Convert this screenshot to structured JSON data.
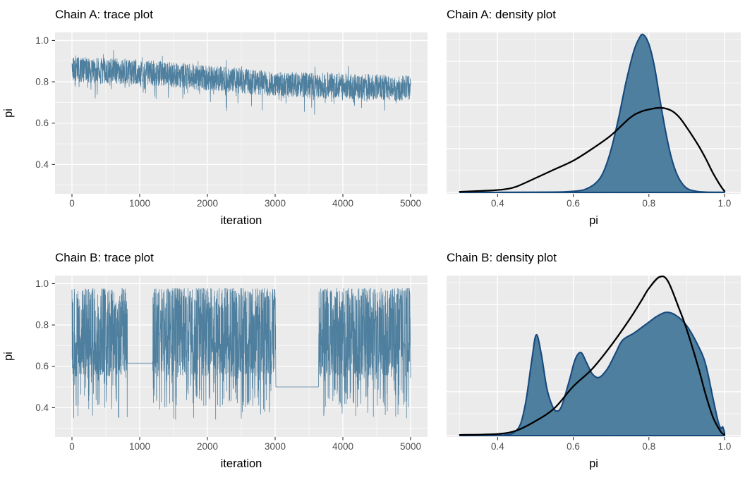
{
  "page": {
    "description": "Two-by-two grid of MCMC diagnostic plots comparing two chains (ggplot style)",
    "background": "#ffffff"
  },
  "colors": {
    "panel_bg": "#EBEBEB",
    "grid_line": "#FFFFFF",
    "trace_line": "#4E7F9E",
    "density_fill": "#4E7F9E",
    "density_stroke": "#17497D",
    "comparison_curve": "#000000",
    "tick_label": "#4D4D4D",
    "tick_mark": "#333333",
    "axis_title": "#000000",
    "plot_title": "#000000"
  },
  "chart_data": [
    {
      "id": "chain-a-trace",
      "type": "line",
      "title": "Chain A: trace plot",
      "xlabel": "iteration",
      "ylabel": "pi",
      "xlim": [
        -250,
        5250
      ],
      "ylim": [
        0.258,
        1.039
      ],
      "x_ticks": [
        0,
        1000,
        2000,
        3000,
        4000,
        5000
      ],
      "x_minor": [
        500,
        1500,
        2500,
        3500,
        4500
      ],
      "y_ticks": [
        0.4,
        0.6,
        0.8,
        1.0
      ],
      "y_minor": [
        0.3,
        0.5,
        0.7,
        0.9
      ],
      "grid": true,
      "series": {
        "name": "pi trace",
        "kind": "drifting_band",
        "n_iterations": 5000,
        "mean_start": 0.858,
        "mean_end": 0.76,
        "band_halfwidth": 0.062,
        "down_spike_prob": 0.05,
        "down_spike_max": 0.095,
        "up_spike_prob": 0.035,
        "up_spike_max": 0.045,
        "observed_min": 0.62,
        "observed_max": 0.965,
        "seed": 20
      }
    },
    {
      "id": "chain-a-density",
      "type": "area",
      "title": "Chain A: density plot",
      "xlabel": "pi",
      "xlim": [
        0.265,
        1.043
      ],
      "x_ticks": [
        0.4,
        0.6,
        0.8,
        1.0
      ],
      "x_minor": [
        0.3,
        0.5,
        0.7,
        0.9
      ],
      "y_major": [
        0,
        0.276,
        0.551,
        0.827
      ],
      "y_minor": [
        0.138,
        0.414,
        0.689,
        0.965
      ],
      "grid": true,
      "density": {
        "name": "chain A sample density",
        "peak_x": 0.785,
        "peak_height": 0.995,
        "points": [
          [
            0.3,
            0
          ],
          [
            0.45,
            0.001
          ],
          [
            0.55,
            0.002
          ],
          [
            0.6,
            0.007
          ],
          [
            0.63,
            0.018
          ],
          [
            0.66,
            0.06
          ],
          [
            0.68,
            0.13
          ],
          [
            0.7,
            0.27
          ],
          [
            0.72,
            0.47
          ],
          [
            0.74,
            0.7
          ],
          [
            0.76,
            0.89
          ],
          [
            0.775,
            0.975
          ],
          [
            0.785,
            0.995
          ],
          [
            0.8,
            0.935
          ],
          [
            0.815,
            0.79
          ],
          [
            0.83,
            0.575
          ],
          [
            0.845,
            0.375
          ],
          [
            0.86,
            0.215
          ],
          [
            0.875,
            0.11
          ],
          [
            0.89,
            0.05
          ],
          [
            0.905,
            0.02
          ],
          [
            0.925,
            0.007
          ],
          [
            0.95,
            0.002
          ],
          [
            1.0,
            0.001
          ]
        ]
      },
      "curve": {
        "name": "target density",
        "peak_x": 0.835,
        "peak_height": 0.533,
        "points": [
          [
            0.3,
            0.004
          ],
          [
            0.38,
            0.012
          ],
          [
            0.42,
            0.02
          ],
          [
            0.45,
            0.037
          ],
          [
            0.5,
            0.09
          ],
          [
            0.55,
            0.145
          ],
          [
            0.6,
            0.2
          ],
          [
            0.65,
            0.275
          ],
          [
            0.7,
            0.36
          ],
          [
            0.75,
            0.47
          ],
          [
            0.78,
            0.51
          ],
          [
            0.81,
            0.528
          ],
          [
            0.835,
            0.533
          ],
          [
            0.86,
            0.515
          ],
          [
            0.88,
            0.475
          ],
          [
            0.9,
            0.41
          ],
          [
            0.93,
            0.3
          ],
          [
            0.95,
            0.215
          ],
          [
            0.97,
            0.12
          ],
          [
            0.99,
            0.04
          ],
          [
            1.0,
            0.008
          ]
        ]
      }
    },
    {
      "id": "chain-b-trace",
      "type": "line",
      "title": "Chain B: trace plot",
      "xlabel": "iteration",
      "ylabel": "pi",
      "xlim": [
        -250,
        5250
      ],
      "ylim": [
        0.258,
        1.039
      ],
      "x_ticks": [
        0,
        1000,
        2000,
        3000,
        4000,
        5000
      ],
      "x_minor": [
        500,
        1500,
        2500,
        3500,
        4500
      ],
      "y_ticks": [
        0.4,
        0.6,
        0.8,
        1.0
      ],
      "y_minor": [
        0.3,
        0.5,
        0.7,
        0.9
      ],
      "grid": true,
      "series": {
        "name": "pi trace",
        "kind": "mixture_band",
        "n_iterations": 5000,
        "components": [
          {
            "weight": 0.68,
            "type": "upper",
            "base": 0.978,
            "spread": 0.43,
            "power": 1.5
          },
          {
            "weight": 0.2,
            "type": "middle",
            "center": 0.63,
            "halfwidth": 0.08
          },
          {
            "weight": 0.12,
            "type": "lower",
            "center": 0.5,
            "halfwidth": 0.1
          }
        ],
        "deep_dip_prob": 0.03,
        "deep_dip_range": [
          0.34,
          0.45
        ],
        "observed_min": 0.33,
        "observed_max": 0.99,
        "stuck_segments": [
          {
            "start": 820,
            "end": 1190,
            "value": 0.615
          },
          {
            "start": 3010,
            "end": 3640,
            "value": 0.5
          }
        ],
        "seed": 7
      }
    },
    {
      "id": "chain-b-density",
      "type": "area",
      "title": "Chain B: density plot",
      "xlabel": "pi",
      "xlim": [
        0.265,
        1.043
      ],
      "x_ticks": [
        0.4,
        0.6,
        0.8,
        1.0
      ],
      "x_minor": [
        0.3,
        0.5,
        0.7,
        0.9
      ],
      "y_major": [
        0,
        0.276,
        0.551,
        0.827
      ],
      "y_minor": [
        0.138,
        0.414,
        0.689,
        0.965
      ],
      "grid": true,
      "density": {
        "name": "chain B sample density (multimodal)",
        "modes_x": [
          0.502,
          0.62,
          0.845
        ],
        "points": [
          [
            0.3,
            0
          ],
          [
            0.4,
            0.002
          ],
          [
            0.42,
            0.005
          ],
          [
            0.44,
            0.015
          ],
          [
            0.46,
            0.07
          ],
          [
            0.475,
            0.22
          ],
          [
            0.49,
            0.47
          ],
          [
            0.502,
            0.635
          ],
          [
            0.515,
            0.52
          ],
          [
            0.53,
            0.3
          ],
          [
            0.545,
            0.185
          ],
          [
            0.557,
            0.154
          ],
          [
            0.57,
            0.19
          ],
          [
            0.59,
            0.35
          ],
          [
            0.605,
            0.48
          ],
          [
            0.62,
            0.524
          ],
          [
            0.635,
            0.46
          ],
          [
            0.65,
            0.39
          ],
          [
            0.668,
            0.366
          ],
          [
            0.69,
            0.42
          ],
          [
            0.71,
            0.51
          ],
          [
            0.73,
            0.6
          ],
          [
            0.76,
            0.645
          ],
          [
            0.78,
            0.68
          ],
          [
            0.8,
            0.715
          ],
          [
            0.82,
            0.75
          ],
          [
            0.845,
            0.777
          ],
          [
            0.87,
            0.76
          ],
          [
            0.9,
            0.693
          ],
          [
            0.93,
            0.568
          ],
          [
            0.95,
            0.45
          ],
          [
            0.97,
            0.23
          ],
          [
            0.982,
            0.1
          ],
          [
            0.99,
            0.045
          ],
          [
            0.995,
            0.055
          ],
          [
            1.0,
            0.02
          ]
        ]
      },
      "curve": {
        "name": "target density",
        "peak_x": 0.828,
        "peak_height": 1.0,
        "points": [
          [
            0.3,
            0.004
          ],
          [
            0.4,
            0.01
          ],
          [
            0.45,
            0.032
          ],
          [
            0.5,
            0.091
          ],
          [
            0.55,
            0.172
          ],
          [
            0.6,
            0.31
          ],
          [
            0.65,
            0.42
          ],
          [
            0.7,
            0.568
          ],
          [
            0.75,
            0.737
          ],
          [
            0.78,
            0.85
          ],
          [
            0.8,
            0.928
          ],
          [
            0.828,
            1.0
          ],
          [
            0.85,
            0.975
          ],
          [
            0.88,
            0.8
          ],
          [
            0.9,
            0.67
          ],
          [
            0.93,
            0.436
          ],
          [
            0.95,
            0.26
          ],
          [
            0.97,
            0.113
          ],
          [
            0.99,
            0.025
          ],
          [
            1.0,
            0.005
          ]
        ]
      }
    }
  ]
}
